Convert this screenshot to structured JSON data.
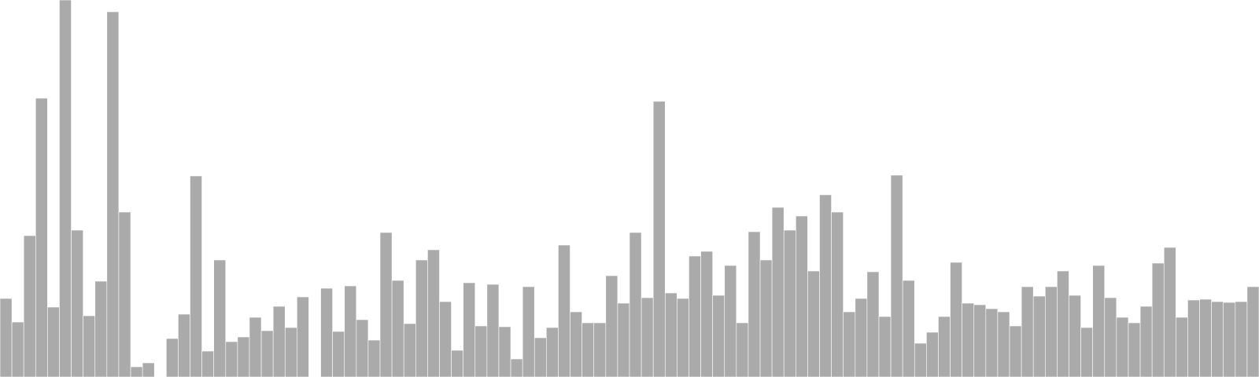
{
  "chart_data": {
    "type": "bar",
    "bar_color": "#aaaaaa",
    "background_color": "#ffffff",
    "axes_visible": false,
    "grid": false,
    "ylim": [
      0,
      480
    ],
    "values": [
      100,
      70,
      180,
      355,
      89,
      480,
      187,
      78,
      122,
      465,
      210,
      13,
      18,
      0,
      49,
      80,
      256,
      33,
      149,
      45,
      51,
      76,
      59,
      90,
      63,
      102,
      0,
      113,
      58,
      116,
      73,
      47,
      184,
      123,
      68,
      149,
      162,
      96,
      34,
      120,
      65,
      118,
      64,
      23,
      115,
      50,
      63,
      168,
      83,
      69,
      69,
      129,
      94,
      184,
      101,
      351,
      107,
      100,
      154,
      160,
      104,
      142,
      69,
      185,
      149,
      216,
      187,
      205,
      135,
      232,
      210,
      83,
      100,
      134,
      77,
      257,
      123,
      43,
      57,
      77,
      146,
      94,
      92,
      87,
      83,
      65,
      115,
      103,
      115,
      135,
      104,
      63,
      142,
      101,
      76,
      69,
      90,
      145,
      165,
      76,
      98,
      99,
      96,
      95,
      96,
      115
    ]
  }
}
